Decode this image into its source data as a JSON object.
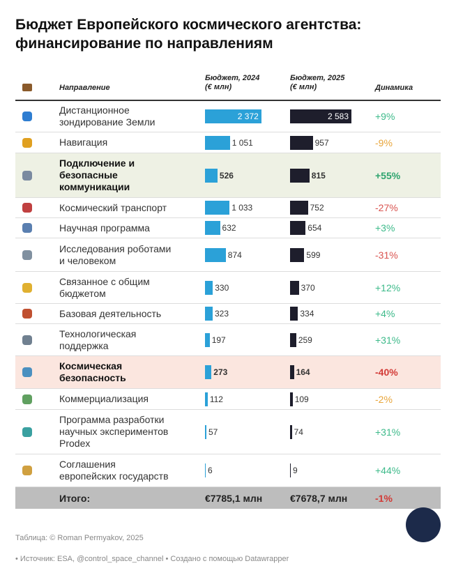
{
  "header": {
    "title": "Бюджет Европейского космического агентства:\nфинансирование по направлениям"
  },
  "table": {
    "columns": [
      "Направление",
      "Бюджет, 2024\n(€ млн)",
      "Бюджет, 2025\n(€ млн)",
      "Динамика"
    ],
    "bar_colors": [
      "#2ba1d8",
      "#1e1e2c"
    ],
    "rows": [
      {
        "name": "Дистанционное\nзондирование Земли",
        "budget_2024": {
          "value": 2372,
          "label": "2 372"
        },
        "budget_2025": {
          "value": 2583,
          "label": "2 583"
        },
        "change": "+9%",
        "change_color": "#3dba8a",
        "bold": false
      },
      {
        "name": "Навигация",
        "budget_2024": {
          "value": 1051,
          "label": "1 051"
        },
        "budget_2025": {
          "value": 957,
          "label": "957"
        },
        "change": "-9%",
        "change_color": "#e8a53a",
        "bold": false
      },
      {
        "name": "Подключение и\nбезопасные\nкоммуникации",
        "budget_2024": {
          "value": 526,
          "label": "526"
        },
        "budget_2025": {
          "value": 815,
          "label": "815"
        },
        "change": "+55%",
        "change_color": "#2ea46e",
        "bold": true,
        "background": "#eef1e4"
      },
      {
        "name": "Космический транспорт",
        "budget_2024": {
          "value": 1033,
          "label": "1 033"
        },
        "budget_2025": {
          "value": 752,
          "label": "752"
        },
        "change": "-27%",
        "change_color": "#d9534f",
        "bold": false
      },
      {
        "name": "Научная программа",
        "budget_2024": {
          "value": 632,
          "label": "632"
        },
        "budget_2025": {
          "value": 654,
          "label": "654"
        },
        "change": "+3%",
        "change_color": "#3dba8a",
        "bold": false
      },
      {
        "name": "Исследования роботами\nи человеком",
        "budget_2024": {
          "value": 874,
          "label": "874"
        },
        "budget_2025": {
          "value": 599,
          "label": "599"
        },
        "change": "-31%",
        "change_color": "#d9534f",
        "bold": false
      },
      {
        "name": "Связанное с общим\nбюджетом",
        "budget_2024": {
          "value": 330,
          "label": "330"
        },
        "budget_2025": {
          "value": 370,
          "label": "370"
        },
        "change": "+12%",
        "change_color": "#3dba8a",
        "bold": false
      },
      {
        "name": "Базовая деятельность",
        "budget_2024": {
          "value": 323,
          "label": "323"
        },
        "budget_2025": {
          "value": 334,
          "label": "334"
        },
        "change": "+4%",
        "change_color": "#3dba8a",
        "bold": false
      },
      {
        "name": "Технологическая\nподдержка",
        "budget_2024": {
          "value": 197,
          "label": "197"
        },
        "budget_2025": {
          "value": 259,
          "label": "259"
        },
        "change": "+31%",
        "change_color": "#3dba8a",
        "bold": false
      },
      {
        "name": "Космическая\nбезопасность",
        "budget_2024": {
          "value": 273,
          "label": "273"
        },
        "budget_2025": {
          "value": 164,
          "label": "164"
        },
        "change": "-40%",
        "change_color": "#d23a36",
        "bold": true,
        "background": "#fbe6df"
      },
      {
        "name": "Коммерциализация",
        "budget_2024": {
          "value": 112,
          "label": "112"
        },
        "budget_2025": {
          "value": 109,
          "label": "109"
        },
        "change": "-2%",
        "change_color": "#e8a53a",
        "bold": false
      },
      {
        "name": "Программа разработки\nнаучных экспериментов\nProdex",
        "budget_2024": {
          "value": 57,
          "label": "57"
        },
        "budget_2025": {
          "value": 74,
          "label": "74"
        },
        "change": "+31%",
        "change_color": "#3dba8a",
        "bold": false
      },
      {
        "name": "Соглашения\nевропейских государств",
        "budget_2024": {
          "value": 6,
          "label": "6"
        },
        "budget_2025": {
          "value": 9,
          "label": "9"
        },
        "change": "+44%",
        "change_color": "#3dba8a",
        "bold": false
      }
    ],
    "total": {
      "name": "Итого:",
      "budget_2024": "€7785,1 млн",
      "budget_2025": "€7678,7 млн",
      "change": "-1%",
      "change_color": "#d23a36"
    }
  },
  "footer": {
    "credit": "Таблица: © Roman Permyakov, 2025",
    "source": "• Источник: ESA, @control_space_channel • Создано с помощью Datawrapper"
  }
}
